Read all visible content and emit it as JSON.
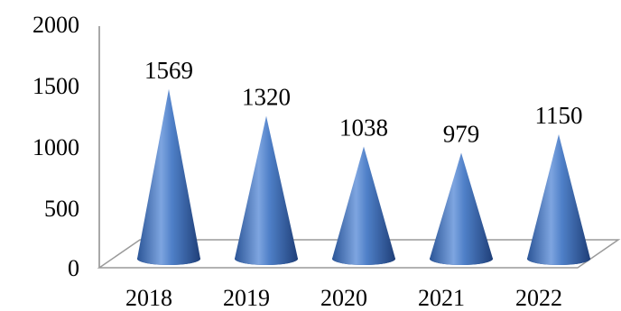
{
  "chart_data": {
    "type": "bar",
    "bar_shape": "cone",
    "categories": [
      "2018",
      "2019",
      "2020",
      "2021",
      "2022"
    ],
    "values": [
      1569,
      1320,
      1038,
      979,
      1150
    ],
    "data_labels": [
      "1569",
      "1320",
      "1038",
      "979",
      "1150"
    ],
    "y_ticks": [
      "0",
      "500",
      "1000",
      "1500",
      "2000"
    ],
    "ylim": [
      0,
      2000
    ],
    "grid": false,
    "legend": "none",
    "bar_color": "#4a7cc6"
  }
}
